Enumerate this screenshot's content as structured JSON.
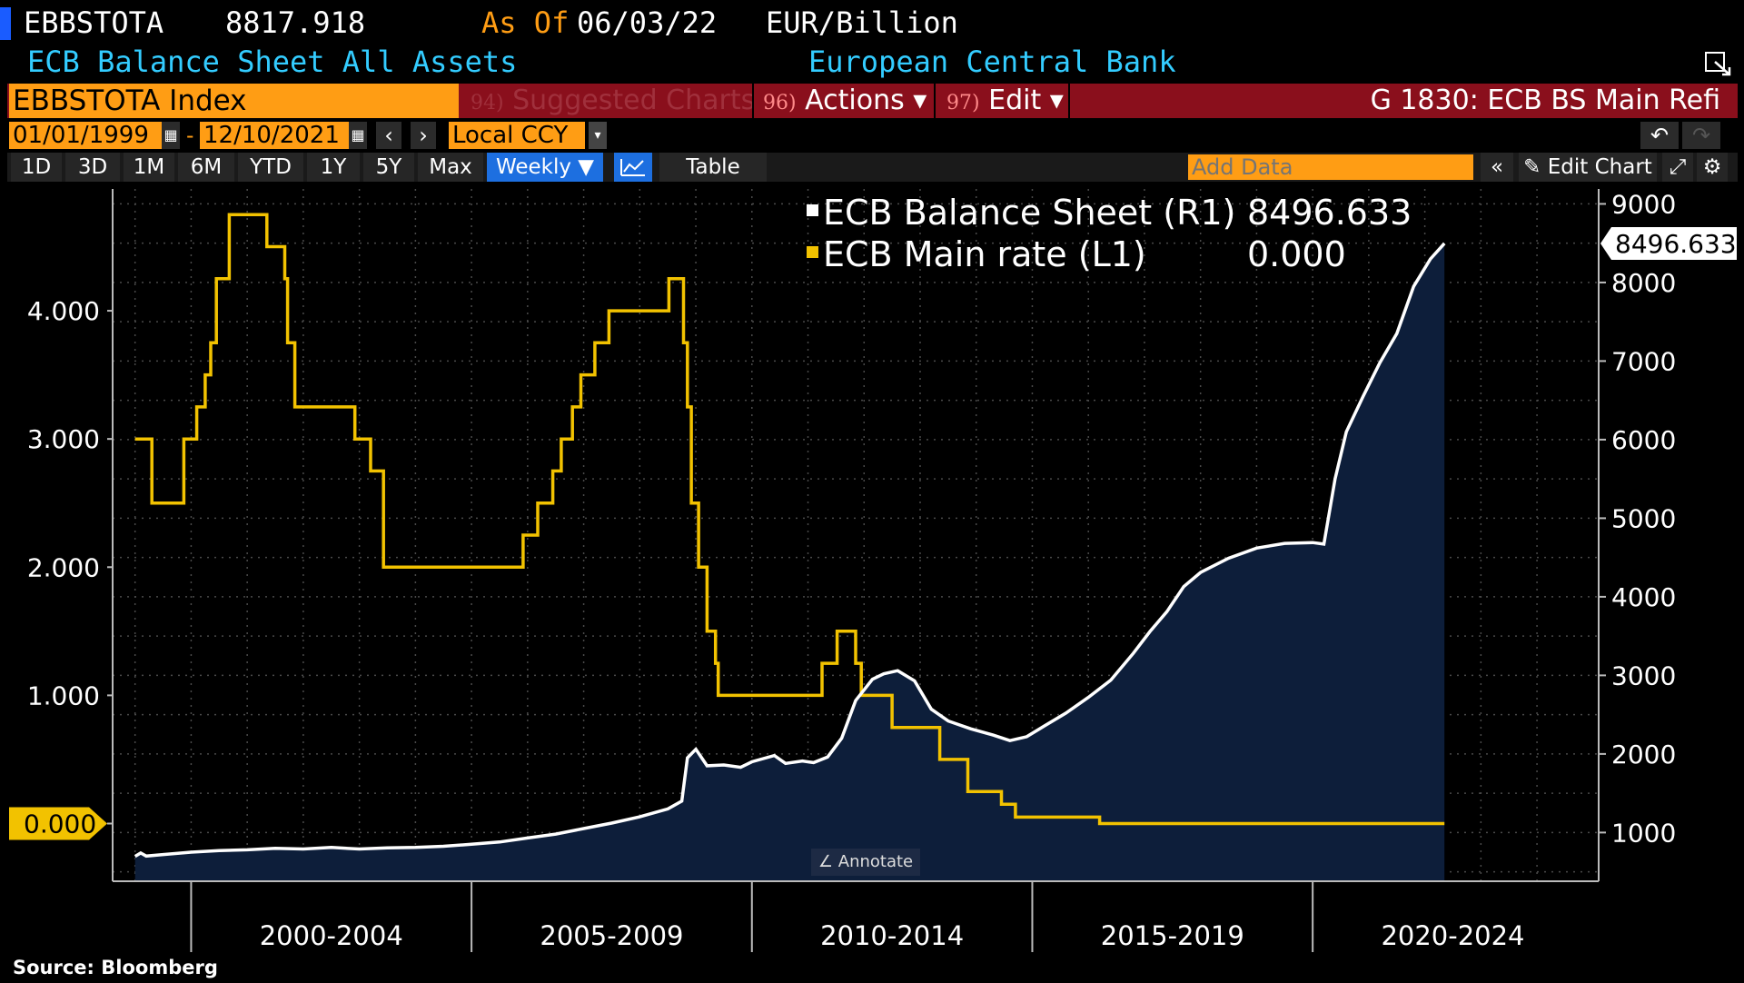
{
  "header": {
    "ticker": "EBBSTOTA",
    "last_value": "8817.918",
    "as_of_label": "As Of",
    "as_of_date": "06/03/22",
    "units": "EUR/Billion",
    "description": "ECB Balance Sheet All Assets",
    "source_name": "European Central Bank"
  },
  "menu": {
    "security": "EBBSTOTA Index",
    "suggested_num": "94)",
    "suggested": "Suggested Charts",
    "actions_num": "96)",
    "actions": "Actions ▾",
    "edit_num": "97)",
    "edit": "Edit ▾",
    "template": "G 1830: ECB BS Main Refi"
  },
  "dates": {
    "start": "01/01/1999",
    "dash": "-",
    "end": "12/10/2021",
    "currency": "Local CCY"
  },
  "ranges": [
    "1D",
    "3D",
    "1M",
    "6M",
    "YTD",
    "1Y",
    "5Y",
    "Max"
  ],
  "frequency": "Weekly ▼",
  "table_label": "Table",
  "add_data_placeholder": "Add Data",
  "edit_chart": "Edit Chart",
  "annotate": "Annotate",
  "source": "Source:  Bloomberg",
  "colors": {
    "balance_line": "#ffffff",
    "balance_fill": "#0d1e3a",
    "rate_line": "#f2c200",
    "orange": "#ff9d14",
    "menu_red": "#8a0f1c"
  },
  "chart_data": {
    "type": "line",
    "x_axis_labels": [
      "2000-2004",
      "2005-2009",
      "2010-2014",
      "2015-2019",
      "2020-2024"
    ],
    "left_axis": {
      "ticks": [
        "0.000",
        "1.000",
        "2.000",
        "3.000",
        "4.000"
      ],
      "ylim": [
        -0.45,
        4.95
      ]
    },
    "right_axis": {
      "ticks": [
        "1000",
        "2000",
        "3000",
        "4000",
        "5000",
        "6000",
        "7000",
        "8000",
        "9000"
      ],
      "ylim": [
        380,
        9190
      ]
    },
    "legend": [
      {
        "name": "ECB Balance Sheet (R1)",
        "value": "8496.633"
      },
      {
        "name": "ECB Main rate (L1)",
        "value": "0.000"
      }
    ],
    "last_labels": {
      "right": "8496.633",
      "left": "0.000"
    },
    "grid": true,
    "series": [
      {
        "name": "ECB Balance Sheet (R1)",
        "axis": "right",
        "style": "area",
        "points": [
          [
            1999.0,
            697
          ],
          [
            1999.1,
            740
          ],
          [
            1999.2,
            700
          ],
          [
            1999.5,
            720
          ],
          [
            2000.0,
            750
          ],
          [
            2000.5,
            770
          ],
          [
            2001.0,
            780
          ],
          [
            2001.5,
            800
          ],
          [
            2002.0,
            790
          ],
          [
            2002.5,
            810
          ],
          [
            2003.0,
            790
          ],
          [
            2003.5,
            805
          ],
          [
            2004.0,
            810
          ],
          [
            2004.5,
            825
          ],
          [
            2005.0,
            850
          ],
          [
            2005.5,
            880
          ],
          [
            2006.0,
            930
          ],
          [
            2006.5,
            980
          ],
          [
            2007.0,
            1050
          ],
          [
            2007.5,
            1120
          ],
          [
            2008.0,
            1200
          ],
          [
            2008.5,
            1300
          ],
          [
            2008.75,
            1400
          ],
          [
            2008.85,
            1950
          ],
          [
            2009.0,
            2060
          ],
          [
            2009.2,
            1850
          ],
          [
            2009.5,
            1860
          ],
          [
            2009.8,
            1830
          ],
          [
            2010.0,
            1900
          ],
          [
            2010.4,
            1980
          ],
          [
            2010.6,
            1880
          ],
          [
            2010.9,
            1910
          ],
          [
            2011.1,
            1890
          ],
          [
            2011.35,
            1960
          ],
          [
            2011.6,
            2200
          ],
          [
            2011.85,
            2680
          ],
          [
            2012.15,
            2950
          ],
          [
            2012.35,
            3020
          ],
          [
            2012.6,
            3060
          ],
          [
            2012.9,
            2930
          ],
          [
            2013.2,
            2570
          ],
          [
            2013.5,
            2420
          ],
          [
            2013.9,
            2320
          ],
          [
            2014.3,
            2240
          ],
          [
            2014.6,
            2170
          ],
          [
            2014.9,
            2220
          ],
          [
            2015.2,
            2350
          ],
          [
            2015.6,
            2520
          ],
          [
            2016.0,
            2720
          ],
          [
            2016.4,
            2940
          ],
          [
            2016.8,
            3280
          ],
          [
            2017.1,
            3560
          ],
          [
            2017.4,
            3810
          ],
          [
            2017.7,
            4130
          ],
          [
            2018.0,
            4310
          ],
          [
            2018.5,
            4490
          ],
          [
            2019.0,
            4620
          ],
          [
            2019.5,
            4680
          ],
          [
            2020.0,
            4690
          ],
          [
            2020.2,
            4670
          ],
          [
            2020.4,
            5500
          ],
          [
            2020.6,
            6100
          ],
          [
            2020.9,
            6550
          ],
          [
            2021.2,
            6980
          ],
          [
            2021.5,
            7350
          ],
          [
            2021.8,
            7950
          ],
          [
            2022.1,
            8300
          ],
          [
            2022.35,
            8497
          ]
        ]
      },
      {
        "name": "ECB Main rate (L1)",
        "axis": "left",
        "style": "step",
        "points": [
          [
            1999.0,
            3.0
          ],
          [
            1999.3,
            2.5
          ],
          [
            1999.87,
            3.0
          ],
          [
            2000.1,
            3.25
          ],
          [
            2000.25,
            3.5
          ],
          [
            2000.35,
            3.75
          ],
          [
            2000.45,
            4.25
          ],
          [
            2000.68,
            4.75
          ],
          [
            2001.35,
            4.5
          ],
          [
            2001.67,
            4.25
          ],
          [
            2001.72,
            3.75
          ],
          [
            2001.85,
            3.25
          ],
          [
            2002.92,
            3.0
          ],
          [
            2003.2,
            2.75
          ],
          [
            2003.43,
            2.0
          ],
          [
            2005.92,
            2.25
          ],
          [
            2006.18,
            2.5
          ],
          [
            2006.45,
            2.75
          ],
          [
            2006.6,
            3.0
          ],
          [
            2006.8,
            3.25
          ],
          [
            2006.95,
            3.5
          ],
          [
            2007.2,
            3.75
          ],
          [
            2007.45,
            4.0
          ],
          [
            2008.52,
            4.25
          ],
          [
            2008.78,
            3.75
          ],
          [
            2008.85,
            3.25
          ],
          [
            2008.92,
            2.5
          ],
          [
            2009.05,
            2.0
          ],
          [
            2009.2,
            1.5
          ],
          [
            2009.35,
            1.25
          ],
          [
            2009.4,
            1.0
          ],
          [
            2011.25,
            1.25
          ],
          [
            2011.52,
            1.5
          ],
          [
            2011.85,
            1.25
          ],
          [
            2011.95,
            1.0
          ],
          [
            2012.5,
            0.75
          ],
          [
            2013.35,
            0.5
          ],
          [
            2013.85,
            0.25
          ],
          [
            2014.45,
            0.15
          ],
          [
            2014.7,
            0.05
          ],
          [
            2016.2,
            0.0
          ],
          [
            2022.35,
            0.0
          ]
        ]
      }
    ]
  }
}
